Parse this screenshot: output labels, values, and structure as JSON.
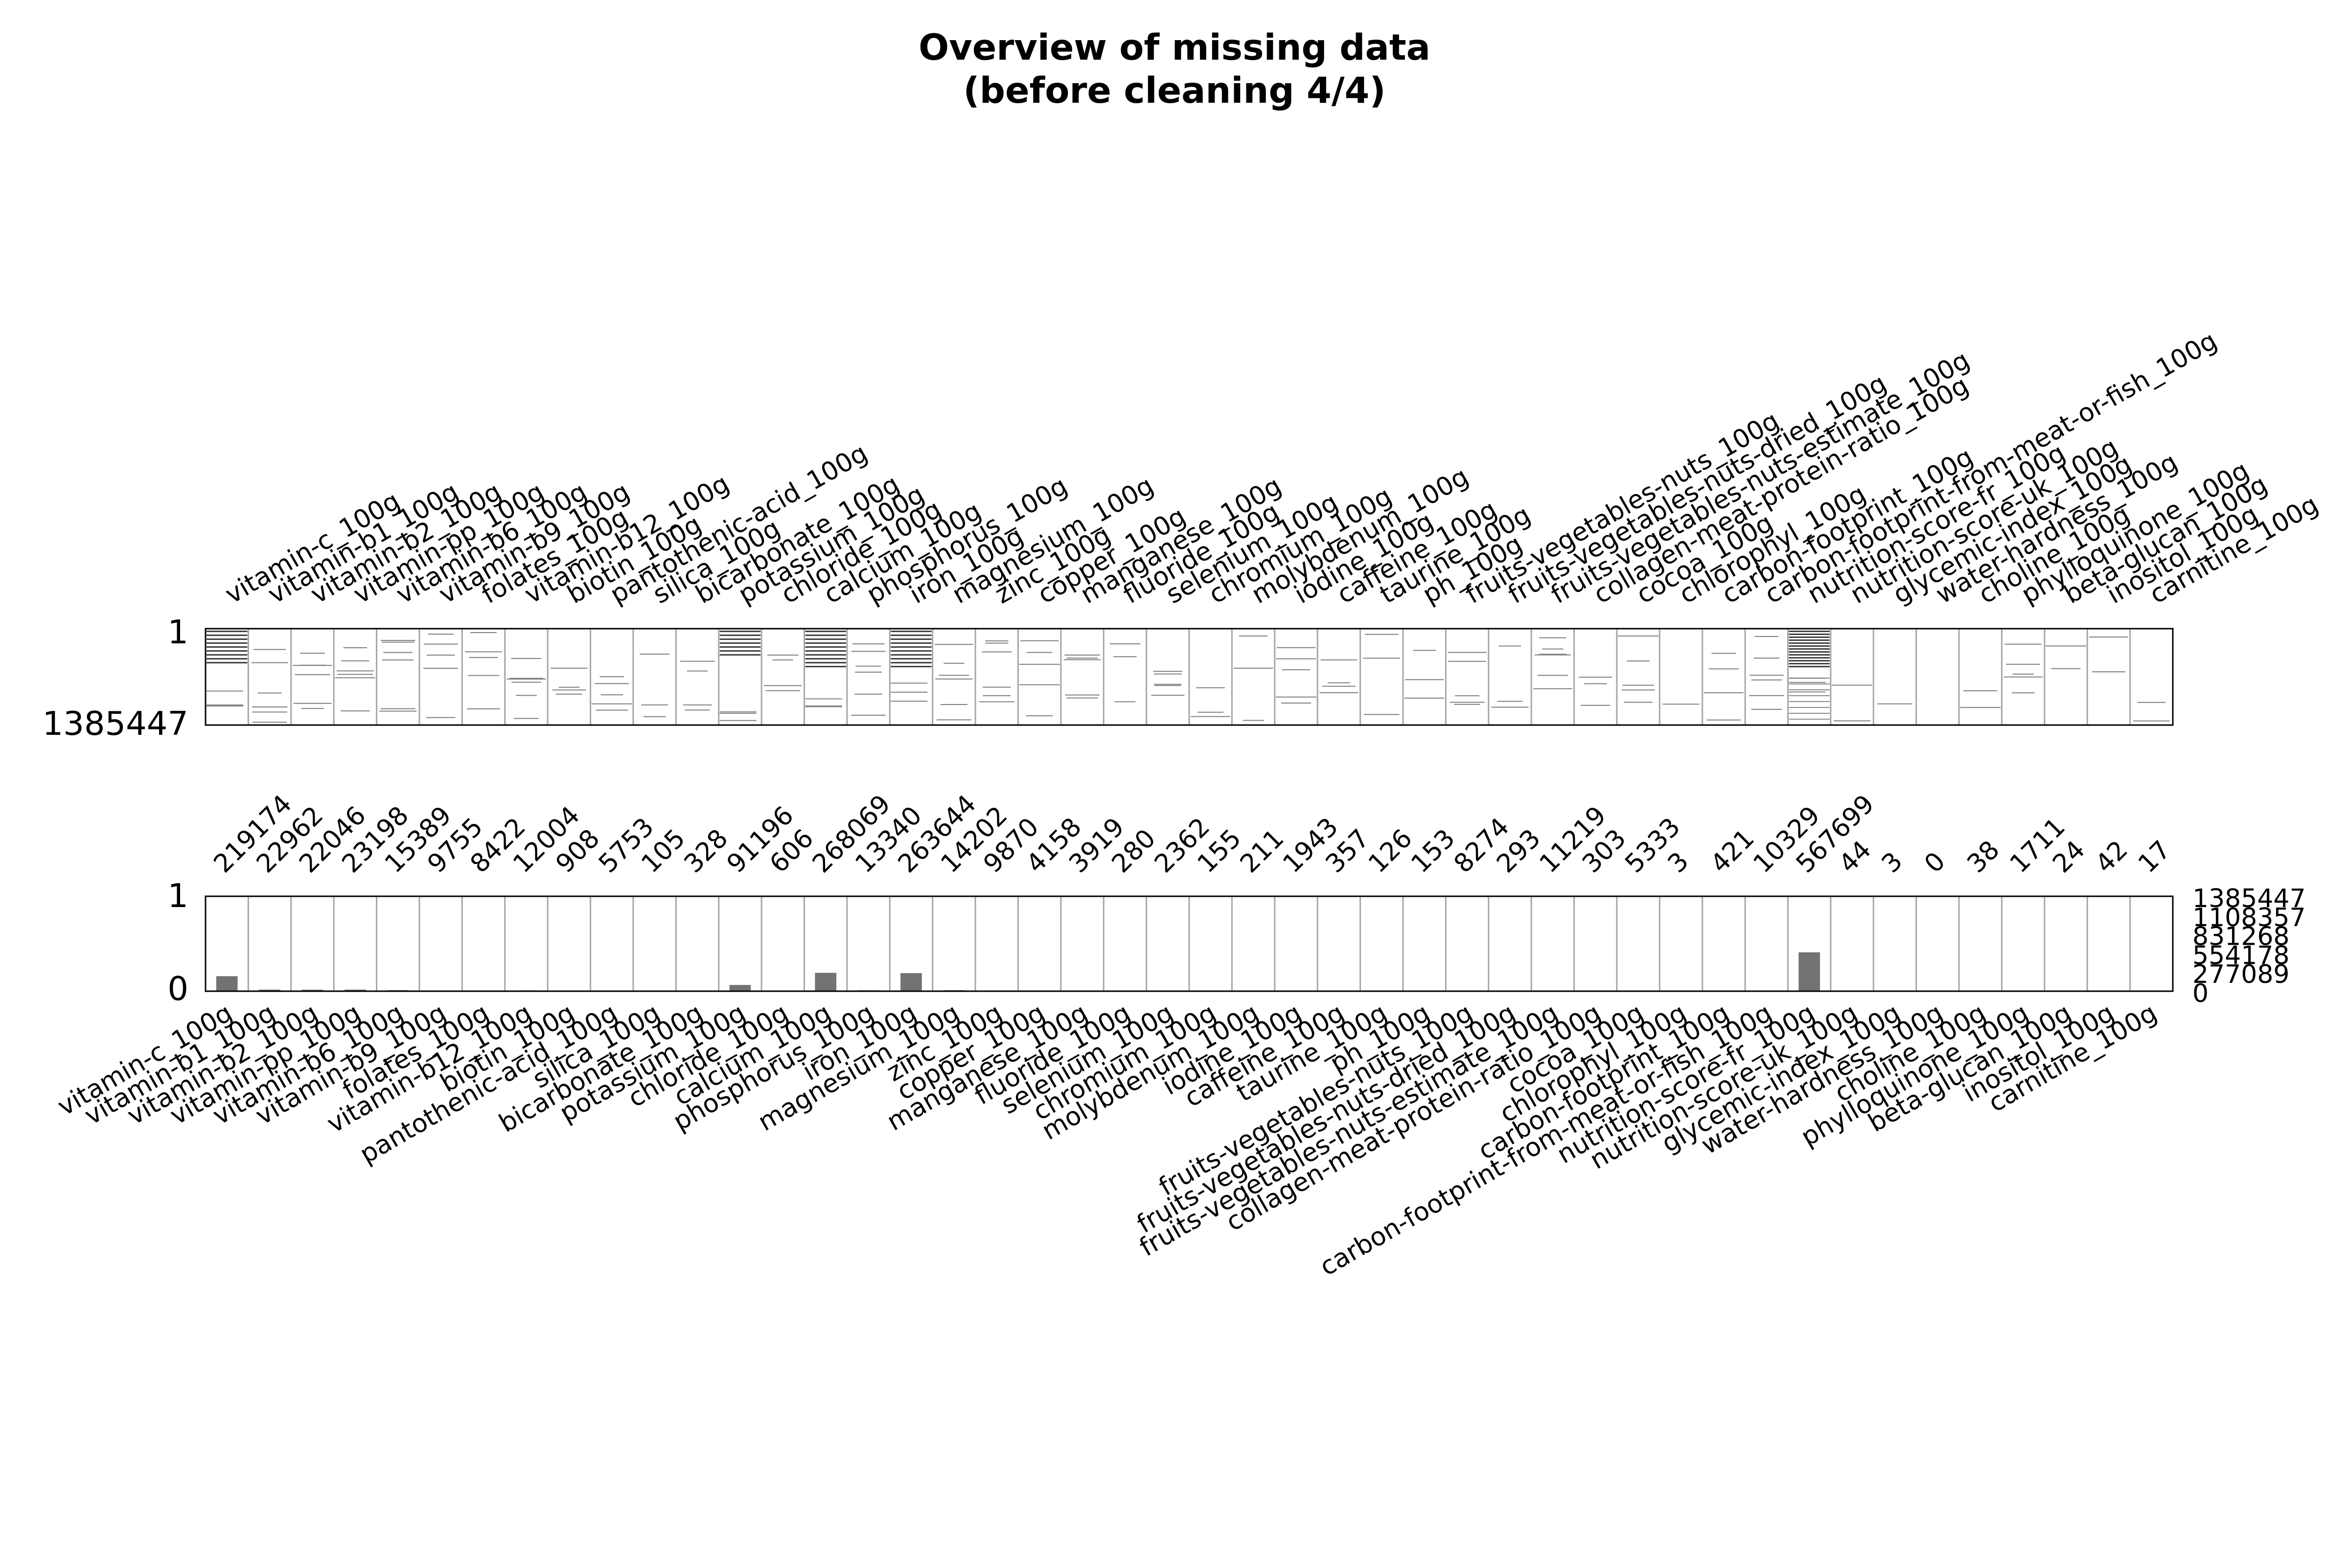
{
  "chart_data": {
    "type": "bar",
    "title": "Overview of missing data\n(before cleaning 4/4)",
    "total_rows": 1385447,
    "columns": [
      "vitamin-c_100g",
      "vitamin-b1_100g",
      "vitamin-b2_100g",
      "vitamin-pp_100g",
      "vitamin-b6_100g",
      "vitamin-b9_100g",
      "folates_100g",
      "vitamin-b12_100g",
      "biotin_100g",
      "pantothenic-acid_100g",
      "silica_100g",
      "bicarbonate_100g",
      "potassium_100g",
      "chloride_100g",
      "calcium_100g",
      "phosphorus_100g",
      "iron_100g",
      "magnesium_100g",
      "zinc_100g",
      "copper_100g",
      "manganese_100g",
      "fluoride_100g",
      "selenium_100g",
      "chromium_100g",
      "molybdenum_100g",
      "iodine_100g",
      "caffeine_100g",
      "taurine_100g",
      "ph_100g",
      "fruits-vegetables-nuts_100g",
      "fruits-vegetables-nuts-dried_100g",
      "fruits-vegetables-nuts-estimate_100g",
      "collagen-meat-protein-ratio_100g",
      "cocoa_100g",
      "chlorophyl_100g",
      "carbon-footprint_100g",
      "carbon-footprint-from-meat-or-fish_100g",
      "nutrition-score-fr_100g",
      "nutrition-score-uk_100g",
      "glycemic-index_100g",
      "water-hardness_100g",
      "choline_100g",
      "phylloquinone_100g",
      "beta-glucan_100g",
      "inositol_100g",
      "carnitine_100g"
    ],
    "non_null_counts": [
      219174,
      22962,
      22046,
      23198,
      15389,
      9755,
      8422,
      12004,
      908,
      5753,
      105,
      328,
      91196,
      606,
      268069,
      13340,
      263644,
      14202,
      9870,
      4158,
      3919,
      280,
      2362,
      155,
      211,
      1943,
      357,
      126,
      153,
      8274,
      293,
      11219,
      303,
      5333,
      3,
      421,
      10329,
      567699,
      44,
      3,
      0,
      38,
      1711,
      24,
      42,
      17
    ],
    "count_labels": [
      "219174",
      "22962",
      "22046",
      "23198",
      "15389",
      "9755",
      "8422",
      "12004",
      "908",
      "5753",
      "105",
      "328",
      "91196",
      "606",
      "268069",
      "13340",
      "263644",
      "14202",
      "9870",
      "4158",
      "3919",
      "280",
      "2362",
      "155",
      "211",
      "1943",
      "357",
      "126",
      "153",
      "8274",
      "293",
      "11219",
      "303",
      "5333",
      "3",
      "421",
      "10329",
      "567699",
      "44",
      "3",
      "0",
      "38",
      "1711",
      "24",
      "42",
      "17"
    ],
    "matrix": {
      "y_top_label": "1",
      "y_bottom_label": "1385447"
    },
    "bars": {
      "ylim": [
        0,
        1
      ],
      "left_ticks": [
        "0",
        "1"
      ],
      "right_ticks": [
        "0",
        "277089",
        "554178",
        "831268",
        "1108357",
        "1385447"
      ]
    },
    "colors": {
      "filled": "#404040",
      "bar": "#737373",
      "frame": "#000000",
      "separator": "#a6a6a6"
    }
  }
}
